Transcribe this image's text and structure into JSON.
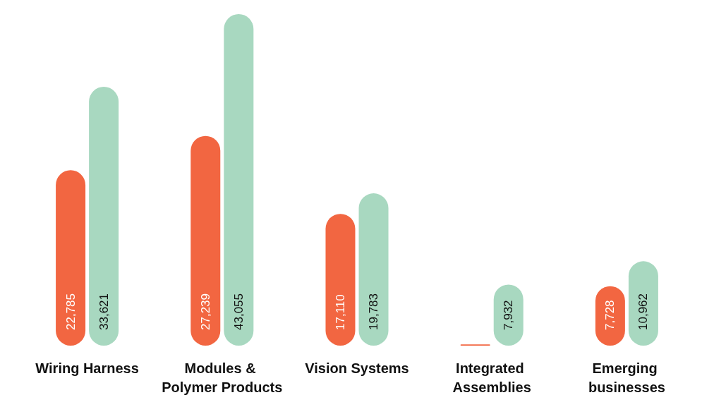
{
  "chart_data": {
    "type": "bar",
    "categories": [
      "Wiring Harness",
      "Modules & Polymer Products",
      "Vision Systems",
      "Integrated Assemblies",
      "Emerging businesses"
    ],
    "series": [
      {
        "color": "#f26641",
        "values": [
          22785,
          27239,
          17110,
          150,
          7728
        ],
        "value_labels": [
          "22,785",
          "27,239",
          "17,110",
          null,
          "7,728"
        ]
      },
      {
        "color": "#a8d8c0",
        "values": [
          33621,
          43055,
          19783,
          7932,
          10962
        ],
        "value_labels": [
          "33,621",
          "43,055",
          "19,783",
          "7,932",
          "10,962"
        ]
      }
    ]
  }
}
